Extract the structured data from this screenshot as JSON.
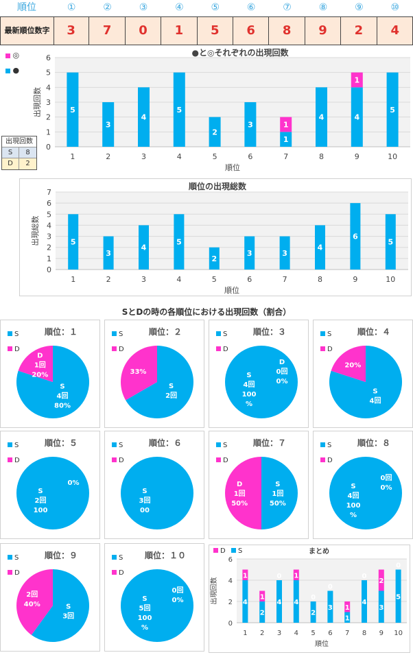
{
  "header": {
    "rank_label": "順位",
    "positions": [
      "①",
      "②",
      "③",
      "④",
      "⑤",
      "⑥",
      "⑦",
      "⑧",
      "⑨",
      "⑩"
    ],
    "latest_label": "最新順位数字",
    "latest_digits": [
      "3",
      "7",
      "0",
      "1",
      "5",
      "6",
      "8",
      "9",
      "2",
      "4"
    ]
  },
  "colors": {
    "s": "#00aeef",
    "d": "#ff33cc",
    "digit": "#e0322e",
    "header": "#3aa7df"
  },
  "legend_top": {
    "d": "◎",
    "s": "●"
  },
  "count_table": {
    "title": "出現回数",
    "rows": [
      {
        "label": "S",
        "value": "8"
      },
      {
        "label": "D",
        "value": "2"
      }
    ]
  },
  "chart_data": [
    {
      "type": "bar",
      "stacked": true,
      "title": "●と◎それぞれの出現回数",
      "xlabel": "順位",
      "ylabel": "出現回数",
      "ylim": [
        0,
        6
      ],
      "yticks": [
        0,
        1,
        2,
        3,
        4,
        5,
        6
      ],
      "categories": [
        "1",
        "2",
        "3",
        "4",
        "5",
        "6",
        "7",
        "8",
        "9",
        "10"
      ],
      "series": [
        {
          "name": "●",
          "values": [
            5,
            3,
            4,
            5,
            2,
            3,
            1,
            4,
            4,
            5
          ]
        },
        {
          "name": "◎",
          "values": [
            0,
            0,
            0,
            0,
            0,
            0,
            1,
            0,
            1,
            0
          ]
        }
      ]
    },
    {
      "type": "bar",
      "title": "順位の出現総数",
      "xlabel": "順位",
      "ylabel": "出現総数",
      "ylim": [
        0,
        7
      ],
      "yticks": [
        0,
        1,
        2,
        3,
        4,
        5,
        6,
        7
      ],
      "categories": [
        "1",
        "2",
        "3",
        "4",
        "5",
        "6",
        "7",
        "8",
        "9",
        "10"
      ],
      "values": [
        5,
        3,
        4,
        5,
        2,
        3,
        3,
        4,
        6,
        5
      ]
    },
    {
      "type": "pie",
      "section_title": "SとDの時の各順位における出現回数（割合）",
      "legend": [
        "S",
        "D"
      ],
      "pies": [
        {
          "title": "順位：１",
          "s": 4,
          "d": 1,
          "s_labels": [
            "S",
            "4回",
            "80%"
          ],
          "d_labels": [
            "D",
            "1回",
            "20%"
          ]
        },
        {
          "title": "順位：２",
          "s": 2,
          "d": 1,
          "s_labels": [
            "S",
            "2回"
          ],
          "d_labels": [
            "33%"
          ]
        },
        {
          "title": "順位：３",
          "s": 4,
          "d": 0,
          "s_labels": [
            "S",
            "4回",
            "100",
            "%"
          ],
          "d_labels": [
            "D",
            "0回",
            "0%"
          ]
        },
        {
          "title": "順位：４",
          "s": 4,
          "d": 1,
          "s_labels": [
            "S",
            "4回"
          ],
          "d_labels": [
            "20%"
          ]
        },
        {
          "title": "順位：５",
          "s": 2,
          "d": 0,
          "s_labels": [
            "S",
            "2回",
            "100"
          ],
          "d_labels": [
            "0%"
          ]
        },
        {
          "title": "順位：６",
          "s": 3,
          "d": 0,
          "s_labels": [
            "S",
            "3回",
            "00"
          ],
          "d_labels": []
        },
        {
          "title": "順位：７",
          "s": 1,
          "d": 1,
          "s_labels": [
            "S",
            "1回",
            "50%"
          ],
          "d_labels": [
            "D",
            "1回",
            "50%"
          ]
        },
        {
          "title": "順位：８",
          "s": 4,
          "d": 0,
          "s_labels": [
            "S",
            "4回",
            "100",
            "%"
          ],
          "d_labels": [
            "0回",
            "0%"
          ]
        },
        {
          "title": "順位：９",
          "s": 3,
          "d": 2,
          "s_labels": [
            "S",
            "3回"
          ],
          "d_labels": [
            "2回",
            "40%"
          ]
        },
        {
          "title": "順位：１０",
          "s": 5,
          "d": 0,
          "s_labels": [
            "S",
            "5回",
            "100",
            "%"
          ],
          "d_labels": [
            "0回",
            "0%"
          ]
        }
      ]
    },
    {
      "type": "bar",
      "stacked": true,
      "title": "まとめ",
      "legend": [
        "D",
        "S"
      ],
      "xlabel": "順位",
      "ylabel": "出現回数",
      "ylim": [
        0,
        6
      ],
      "yticks": [
        0,
        2,
        4,
        6
      ],
      "categories": [
        "1",
        "2",
        "3",
        "4",
        "5",
        "6",
        "7",
        "8",
        "9",
        "10"
      ],
      "series": [
        {
          "name": "S",
          "values": [
            4,
            2,
            4,
            4,
            2,
            3,
            1,
            4,
            3,
            5
          ]
        },
        {
          "name": "D",
          "values": [
            1,
            1,
            0,
            1,
            0,
            0,
            1,
            0,
            2,
            0
          ]
        }
      ]
    }
  ]
}
